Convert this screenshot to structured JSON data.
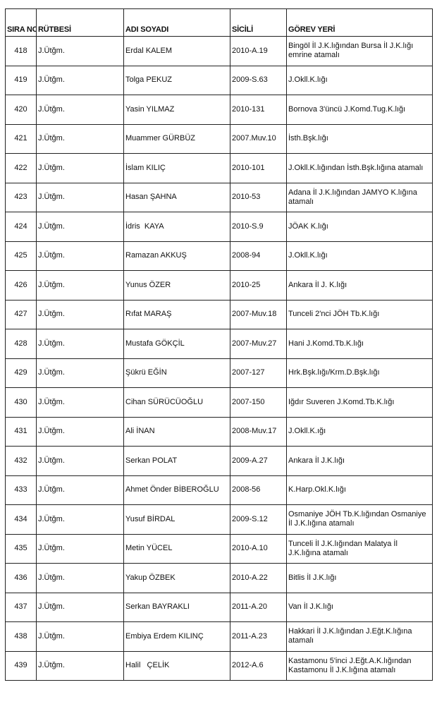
{
  "headers": [
    "SIRA NO",
    "RÜTBESİ",
    "ADI SOYADI",
    "SİCİLİ",
    "GÖREV YERİ"
  ],
  "rows": [
    {
      "no": "418",
      "rank": "J.Ütğm.",
      "name": "Erdal KALEM",
      "sicil": "2010-A.19",
      "gorev": "Bingöl İl J.K.lığından Bursa İl J.K.lığı emrine atamalı"
    },
    {
      "no": "419",
      "rank": "J.Ütğm.",
      "name": "Tolga PEKUZ",
      "sicil": "2009-S.63",
      "gorev": "J.Okll.K.lığı"
    },
    {
      "no": "420",
      "rank": "J.Ütğm.",
      "name": "Yasin YILMAZ",
      "sicil": "2010-131",
      "gorev": "Bornova 3'üncü J.Komd.Tug.K.lığı"
    },
    {
      "no": "421",
      "rank": "J.Ütğm.",
      "name": "Muammer GÜRBÜZ",
      "sicil": "2007.Muv.10",
      "gorev": "İsth.Bşk.lığı"
    },
    {
      "no": "422",
      "rank": "J.Ütğm.",
      "name": "İslam KILIÇ",
      "sicil": "2010-101",
      "gorev": "J.Okll.K.lığından İsth.Bşk.lığına atamalı"
    },
    {
      "no": "423",
      "rank": "J.Ütğm.",
      "name": "Hasan ŞAHNA",
      "sicil": "2010-53",
      "gorev": "Adana İl J.K.lığından JAMYO K.lığına atamalı"
    },
    {
      "no": "424",
      "rank": "J.Ütğm.",
      "name": "İdris  KAYA",
      "sicil": "2010-S.9",
      "gorev": "JÖAK K.lığı"
    },
    {
      "no": "425",
      "rank": "J.Ütğm.",
      "name": "Ramazan AKKUŞ",
      "sicil": "2008-94",
      "gorev": "J.Okll.K.lığı"
    },
    {
      "no": "426",
      "rank": "J.Ütğm.",
      "name": "Yunus ÖZER",
      "sicil": "2010-25",
      "gorev": "Ankara İl J. K.lığı"
    },
    {
      "no": "427",
      "rank": "J.Ütğm.",
      "name": "Rıfat MARAŞ",
      "sicil": "2007-Muv.18",
      "gorev": "Tunceli 2'nci JÖH Tb.K.lığı"
    },
    {
      "no": "428",
      "rank": "J.Ütğm.",
      "name": "Mustafa GÖKÇİL",
      "sicil": "2007-Muv.27",
      "gorev": "Hani J.Komd.Tb.K.lığı"
    },
    {
      "no": "429",
      "rank": "J.Ütğm.",
      "name": "Şükrü EĞİN",
      "sicil": "2007-127",
      "gorev": "Hrk.Bşk.lığı/Krm.D.Bşk.lığı"
    },
    {
      "no": "430",
      "rank": "J.Ütğm.",
      "name": "Cihan SÜRÜCÜOĞLU",
      "sicil": "2007-150",
      "gorev": "Iğdır Suveren J.Komd.Tb.K.lığı"
    },
    {
      "no": "431",
      "rank": "J.Ütğm.",
      "name": "Ali İNAN",
      "sicil": "2008-Muv.17",
      "gorev": "J.Okll.K.ığı"
    },
    {
      "no": "432",
      "rank": "J.Ütğm.",
      "name": "Serkan POLAT",
      "sicil": "2009-A.27",
      "gorev": "Ankara İl J.K.lığı"
    },
    {
      "no": "433",
      "rank": "J.Ütğm.",
      "name": "Ahmet Önder BİBEROĞLU",
      "sicil": "2008-56",
      "gorev": "K.Harp.Okl.K.lığı"
    },
    {
      "no": "434",
      "rank": "J.Ütğm.",
      "name": "Yusuf BİRDAL",
      "sicil": "2009-S.12",
      "gorev": "Osmaniye JÖH Tb.K.lığından Osmaniye İl J.K.lığına atamalı"
    },
    {
      "no": "435",
      "rank": "J.Ütğm.",
      "name": "Metin YÜCEL",
      "sicil": "2010-A.10",
      "gorev": "Tunceli İl J.K.lığından Malatya İl J.K.lığına atamalı"
    },
    {
      "no": "436",
      "rank": "J.Ütğm.",
      "name": "Yakup ÖZBEK",
      "sicil": "2010-A.22",
      "gorev": "Bitlis İl J.K.lığı"
    },
    {
      "no": "437",
      "rank": "J.Ütğm.",
      "name": "Serkan BAYRAKLI",
      "sicil": "2011-A.20",
      "gorev": "Van İl J.K.lığı"
    },
    {
      "no": "438",
      "rank": "J.Ütğm.",
      "name": "Embiya Erdem KILINÇ",
      "sicil": "2011-A.23",
      "gorev": "Hakkari İl J.K.lığından J.Eğt.K.lığına atamalı"
    },
    {
      "no": "439",
      "rank": "J.Ütğm.",
      "name": "Halil   ÇELİK",
      "sicil": "2012-A.6",
      "gorev": "Kastamonu 5'inci J.Eğt.A.K.lığından Kastamonu İl J.K.lığına atamalı"
    }
  ]
}
